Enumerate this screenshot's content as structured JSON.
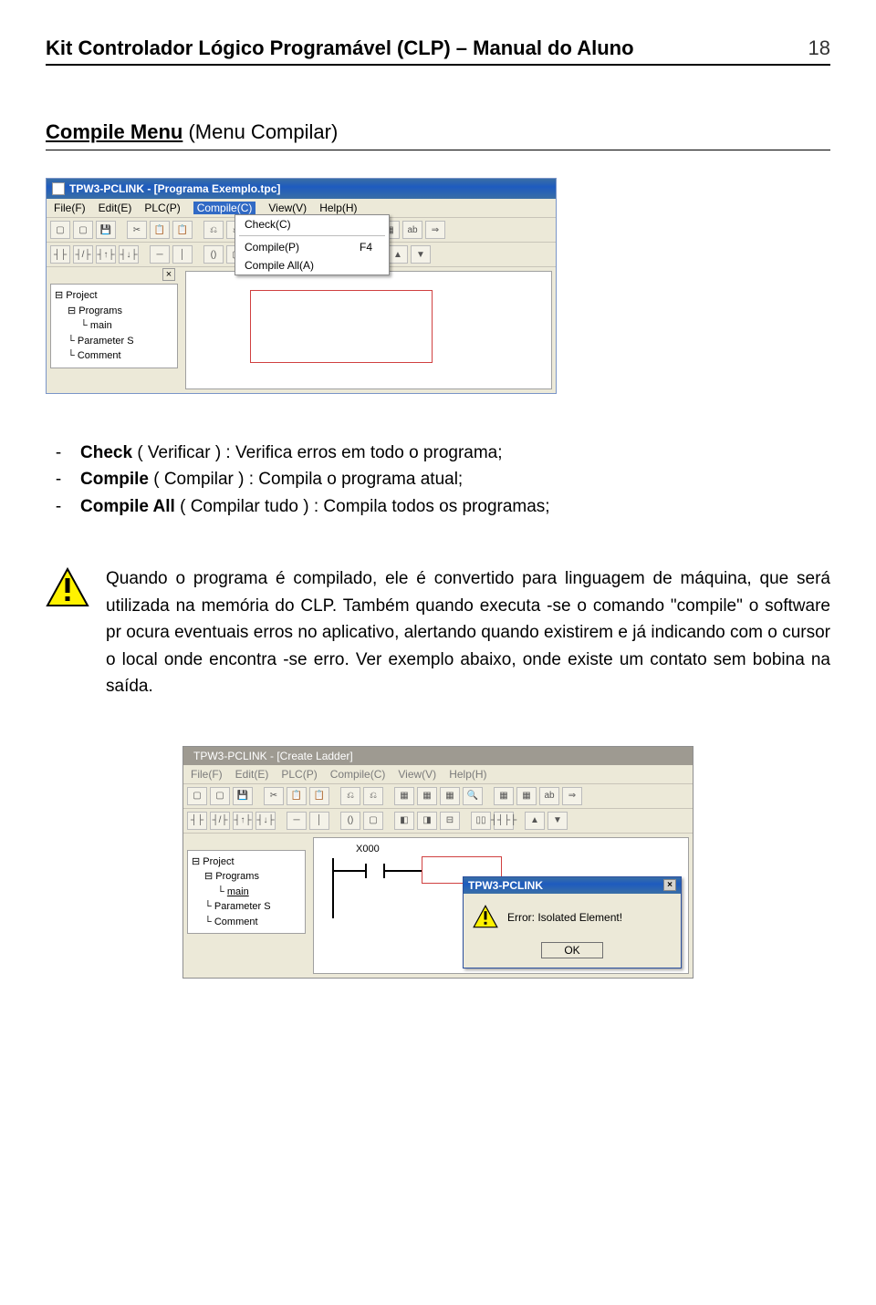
{
  "doc": {
    "title": "Kit Controlador Lógico Programável (CLP) – Manual do Aluno",
    "page_number": "18"
  },
  "section": {
    "heading_bold": "Compile Menu",
    "heading_rest": " (Menu Compilar)"
  },
  "shot1": {
    "window_title": "TPW3-PCLINK - [Programa Exemplo.tpc]",
    "menus": {
      "file": "File(F)",
      "edit": "Edit(E)",
      "plc": "PLC(P)",
      "compile": "Compile(C)",
      "view": "View(V)",
      "help": "Help(H)"
    },
    "dropdown": {
      "check": "Check(C)",
      "compile": "Compile(P)",
      "compile_key": "F4",
      "compile_all": "Compile All(A)"
    },
    "tree": {
      "project": "Project",
      "programs": "Programs",
      "main": "main",
      "parameter": "Parameter S",
      "comment": "Comment"
    },
    "toolbar_glyphs": [
      "▢",
      "▢",
      "💾",
      "",
      "✂",
      "📋",
      "📋",
      "",
      "⎌",
      "⎌",
      "",
      "▦",
      "▦",
      "▦",
      "🔍",
      "",
      "▦",
      "▦",
      "ab",
      "⇒"
    ],
    "toolbar_glyphs2": [
      "┤├",
      "┤/├",
      "┤↑├",
      "┤↓├",
      "",
      "─",
      "│",
      "",
      "()",
      "▢",
      "",
      "◧",
      "◨",
      "⊟",
      "",
      "▯▯",
      "┤┤├├",
      "",
      "▲",
      "▼"
    ],
    "colors": {
      "titlebar": "#1e5bbf",
      "chrome": "#ece9d8",
      "redbox": "#d04040"
    }
  },
  "definitions": {
    "check_term": "Check",
    "check_paren": "( Verificar ) :",
    "check_desc": " Verifica erros em todo o programa;",
    "compile_term": "Compile",
    "compile_paren": "( Compilar ) :",
    "compile_desc": " Compila o programa atual;",
    "compileall_term": "Compile All ",
    "compileall_paren": "( Compilar tudo ) :",
    "compileall_desc": " Compila todos os programas;"
  },
  "warning": {
    "text": "Quando o programa é compilado, ele é convertido para linguagem de máquina, que será utilizada na memória do CLP. Também quando executa -se o comando \"compile\" o software pr ocura eventuais erros no aplicativo, alertando quando existirem e já indicando com o cursor o local onde encontra -se erro. Ver exemplo abaixo, onde existe um contato sem bobina na saída.",
    "icon_colors": {
      "fill": "#fff200",
      "stroke": "#000000",
      "bang": "#000000"
    }
  },
  "shot2": {
    "window_title": "TPW3-PCLINK - [Create Ladder]",
    "menus": {
      "file": "File(F)",
      "edit": "Edit(E)",
      "plc": "PLC(P)",
      "compile": "Compile(C)",
      "view": "View(V)",
      "help": "Help(H)"
    },
    "tree": {
      "project": "Project",
      "programs": "Programs",
      "main": "main",
      "parameter": "Parameter S",
      "comment": "Comment"
    },
    "ladder_contact_label": "X000",
    "dialog": {
      "title": "TPW3-PCLINK",
      "message": "Error: Isolated Element!",
      "ok": "OK",
      "close": "×"
    }
  }
}
